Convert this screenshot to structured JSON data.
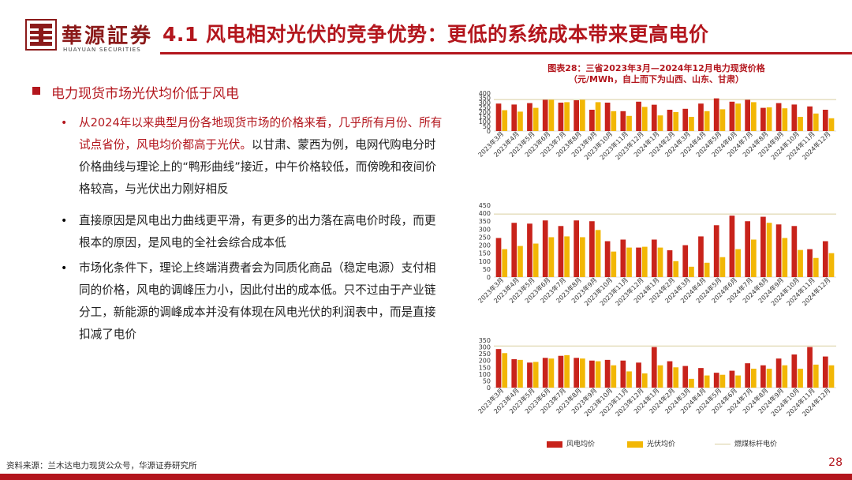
{
  "header": {
    "logo_name": "華源証券",
    "logo_sub": "HUAYUAN SECURITIES",
    "title": "4.1 风电相对光伏的竞争优势：更低的系统成本带来更高电价"
  },
  "section": {
    "heading": "电力现货市场光伏均价低于风电",
    "bullets": [
      {
        "highlight": "从2024年以来典型月份各地现货市场的价格来看，几乎所有月份、所有试点省份，风电均价都高于光伏。",
        "text": "以甘肃、蒙西为例，电网代购电分时价格曲线与理论上的“鸭形曲线”接近，中午价格较低，而傍晚和夜间价格较高，与光伏出力刚好相反"
      },
      {
        "highlight": "",
        "text": "直接原因是风电出力曲线更平滑，有更多的出力落在高电价时段，而更根本的原因，是风电的全社会综合成本低"
      },
      {
        "highlight": "",
        "text": "市场化条件下，理论上终端消费者会为同质化商品（稳定电源）支付相同的价格，风电的调峰压力小，因此付出的成本低。只不过由于产业链分工，新能源的调峰成本并没有体现在风电光伏的利润表中，而是直接扣减了电价"
      }
    ]
  },
  "chart_title": "图表28：三省2023年3月—2024年12月电力现货价格",
  "chart_subtitle": "（元/MWh，自上而下为山西、山东、甘肃）",
  "chart_data": [
    {
      "type": "bar",
      "categories": [
        "2023年3月",
        "2023年4月",
        "2023年5月",
        "2023年6月",
        "2023年7月",
        "2023年8月",
        "2023年9月",
        "2023年10月",
        "2023年11月",
        "2023年12月",
        "2024年1月",
        "2024年2月",
        "2024年3月",
        "2024年4月",
        "2024年5月",
        "2024年6月",
        "2024年7月",
        "2024年8月",
        "2024年9月",
        "2024年10月",
        "2024年11月",
        "2024年12月"
      ],
      "series": [
        {
          "name": "风电均价",
          "color": "#c8231b",
          "values": [
            290,
            280,
            295,
            330,
            300,
            325,
            225,
            300,
            210,
            310,
            278,
            225,
            235,
            290,
            345,
            310,
            330,
            245,
            295,
            280,
            260,
            225
          ]
        },
        {
          "name": "光伏均价",
          "color": "#f2b705",
          "values": [
            220,
            205,
            245,
            330,
            305,
            330,
            305,
            210,
            160,
            255,
            165,
            200,
            150,
            210,
            230,
            290,
            305,
            250,
            240,
            150,
            185,
            135
          ]
        }
      ],
      "reference_line": {
        "name": "燃煤标杆电价",
        "value": 332,
        "color": "#d9cfa0"
      },
      "ylim": [
        0,
        400
      ],
      "yticks": [
        0,
        50,
        100,
        150,
        200,
        250,
        300,
        350,
        400
      ]
    },
    {
      "type": "bar",
      "categories": [
        "2023年3月",
        "2023年4月",
        "2023年5月",
        "2023年6月",
        "2023年7月",
        "2023年8月",
        "2023年9月",
        "2023年10月",
        "2023年11月",
        "2023年12月",
        "2024年1月",
        "2024年2月",
        "2024年3月",
        "2024年4月",
        "2024年5月",
        "2024年6月",
        "2024年7月",
        "2024年8月",
        "2024年9月",
        "2024年10月",
        "2024年11月",
        "2024年12月"
      ],
      "series": [
        {
          "name": "风电均价",
          "color": "#c8231b",
          "values": [
            245,
            340,
            335,
            355,
            320,
            355,
            350,
            225,
            235,
            185,
            235,
            168,
            200,
            255,
            325,
            385,
            350,
            378,
            330,
            320,
            175,
            225
          ]
        },
        {
          "name": "光伏均价",
          "color": "#f2b705",
          "values": [
            175,
            195,
            210,
            250,
            255,
            250,
            295,
            160,
            185,
            190,
            185,
            100,
            65,
            90,
            125,
            175,
            235,
            340,
            245,
            170,
            120,
            150
          ]
        }
      ],
      "reference_line": {
        "name": "燃煤标杆电价",
        "value": 395,
        "color": "#d9cfa0"
      },
      "ylim": [
        0,
        450
      ],
      "yticks": [
        0,
        50,
        100,
        150,
        200,
        250,
        300,
        350,
        400,
        450
      ]
    },
    {
      "type": "bar",
      "categories": [
        "2023年3月",
        "2023年4月",
        "2023年5月",
        "2023年6月",
        "2023年7月",
        "2023年8月",
        "2023年9月",
        "2023年10月",
        "2023年11月",
        "2023年12月",
        "2024年1月",
        "2024年2月",
        "2024年3月",
        "2024年4月",
        "2024年5月",
        "2024年6月",
        "2024年7月",
        "2024年8月",
        "2024年9月",
        "2024年10月",
        "2024年11月",
        "2024年12月"
      ],
      "series": [
        {
          "name": "风电均价",
          "color": "#c8231b",
          "values": [
            285,
            210,
            185,
            220,
            235,
            220,
            200,
            205,
            200,
            185,
            300,
            195,
            160,
            145,
            110,
            125,
            180,
            165,
            215,
            245,
            300,
            230
          ]
        },
        {
          "name": "光伏均价",
          "color": "#f2b705",
          "values": [
            255,
            205,
            190,
            215,
            240,
            215,
            195,
            165,
            120,
            105,
            165,
            150,
            65,
            90,
            95,
            90,
            140,
            140,
            165,
            140,
            170,
            165
          ]
        }
      ],
      "reference_line": {
        "name": "燃煤标杆电价",
        "value": 308,
        "color": "#d9cfa0"
      },
      "ylim": [
        0,
        350
      ],
      "yticks": [
        0,
        50,
        100,
        150,
        200,
        250,
        300,
        350
      ]
    }
  ],
  "legend": {
    "wind": "风电均价",
    "solar": "光伏均价",
    "coal": "燃煤标杆电价"
  },
  "footer": {
    "source": "资料来源：兰木达电力现货公众号，华源证券研究所",
    "page": "28"
  },
  "colors": {
    "brand_red": "#b3161d",
    "wind": "#c8231b",
    "solar": "#f2b705",
    "coal_line": "#d9cfa0"
  }
}
